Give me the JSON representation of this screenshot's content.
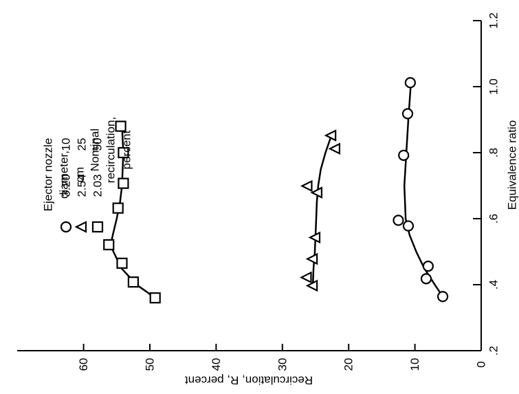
{
  "chart_data": {
    "type": "scatter",
    "xlabel": "Equivalence ratio",
    "ylabel": "Recirculation, R, percent",
    "xlim": [
      0.2,
      1.2
    ],
    "ylim": [
      0,
      70
    ],
    "x_ticks": [
      0.2,
      0.4,
      0.6,
      0.8,
      1.0,
      1.2
    ],
    "x_tick_labels": [
      ".2",
      ".4",
      ".6",
      ".8",
      "1.0",
      "1.2"
    ],
    "y_ticks": [
      0,
      10,
      20,
      30,
      40,
      50,
      60
    ],
    "y_tick_labels": [
      "0",
      "10",
      "20",
      "30",
      "40",
      "50",
      "60"
    ],
    "grid": false,
    "orientation": "rotated 90 degrees counterclockwise",
    "legend": {
      "headers": [
        "Ejector nozzle diameter, cm",
        "Nominal recirculation, percent"
      ],
      "header_lines": [
        [
          "Ejector nozzle",
          "diameter,",
          "cm"
        ],
        [
          "Nominal",
          "recirculation,",
          "percent"
        ]
      ],
      "entries": [
        {
          "marker": "circle",
          "diameter": "3.20",
          "recirculation": "10"
        },
        {
          "marker": "triangle",
          "diameter": "2.54",
          "recirculation": "25"
        },
        {
          "marker": "square",
          "diameter": "2.03",
          "recirculation": "50"
        }
      ]
    },
    "series": [
      {
        "marker": "circle",
        "points": [
          [
            0.364,
            5.8
          ],
          [
            0.418,
            8.3
          ],
          [
            0.456,
            8.0
          ],
          [
            0.578,
            11.0
          ],
          [
            0.595,
            12.5
          ],
          [
            0.792,
            11.7
          ],
          [
            0.918,
            11.1
          ],
          [
            1.012,
            10.7
          ]
        ],
        "curve": [
          [
            0.364,
            5.8
          ],
          [
            0.4,
            7.0
          ],
          [
            0.45,
            8.6
          ],
          [
            0.5,
            9.8
          ],
          [
            0.55,
            10.8
          ],
          [
            0.6,
            11.4
          ],
          [
            0.7,
            11.6
          ],
          [
            0.8,
            11.3
          ],
          [
            0.9,
            11.0
          ],
          [
            1.012,
            10.6
          ]
        ]
      },
      {
        "marker": "triangle",
        "points": [
          [
            0.397,
            25.4
          ],
          [
            0.422,
            26.3
          ],
          [
            0.478,
            25.4
          ],
          [
            0.543,
            25.0
          ],
          [
            0.679,
            24.7
          ],
          [
            0.699,
            26.2
          ],
          [
            0.812,
            22.0
          ],
          [
            0.852,
            22.6
          ]
        ],
        "curve": [
          [
            0.397,
            25.4
          ],
          [
            0.45,
            25.3
          ],
          [
            0.5,
            25.1
          ],
          [
            0.55,
            25.0
          ],
          [
            0.6,
            24.9
          ],
          [
            0.65,
            24.8
          ],
          [
            0.7,
            24.6
          ],
          [
            0.75,
            24.2
          ],
          [
            0.8,
            23.5
          ],
          [
            0.852,
            22.6
          ]
        ]
      },
      {
        "marker": "square",
        "points": [
          [
            0.36,
            49.2
          ],
          [
            0.408,
            52.5
          ],
          [
            0.465,
            54.2
          ],
          [
            0.521,
            56.2
          ],
          [
            0.632,
            54.8
          ],
          [
            0.707,
            54.0
          ],
          [
            0.8,
            54.0
          ],
          [
            0.88,
            54.4
          ]
        ],
        "curve": [
          [
            0.36,
            49.2
          ],
          [
            0.4,
            52.0
          ],
          [
            0.45,
            54.3
          ],
          [
            0.5,
            55.5
          ],
          [
            0.521,
            55.9
          ],
          [
            0.55,
            55.6
          ],
          [
            0.6,
            55.0
          ],
          [
            0.65,
            54.5
          ],
          [
            0.7,
            54.2
          ],
          [
            0.8,
            54.0
          ],
          [
            0.88,
            54.2
          ]
        ]
      }
    ]
  }
}
